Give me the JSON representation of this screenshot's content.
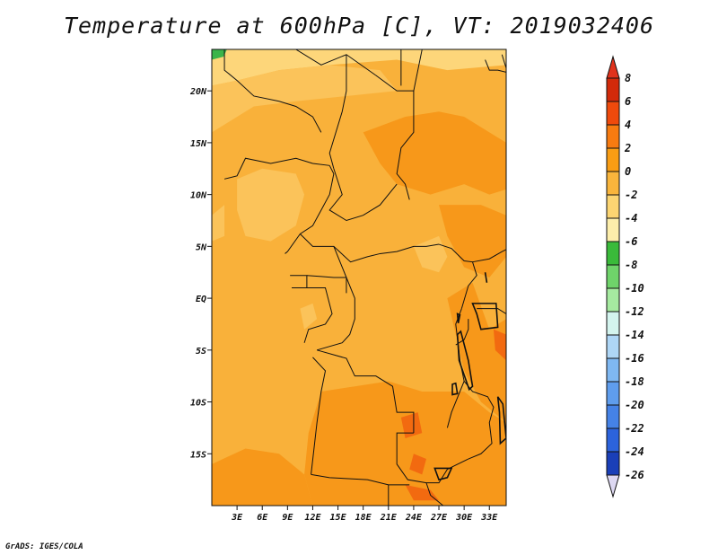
{
  "title": "Temperature at 600hPa [C], VT: 2019032406",
  "footer": "GrADS: IGES/COLA",
  "map": {
    "lon_range": [
      0,
      35
    ],
    "lat_range": [
      -20,
      24
    ],
    "lat_ticks": [
      {
        "lat": 20,
        "label": "20N"
      },
      {
        "lat": 15,
        "label": "15N"
      },
      {
        "lat": 10,
        "label": "10N"
      },
      {
        "lat": 5,
        "label": "5N"
      },
      {
        "lat": 0,
        "label": "EQ"
      },
      {
        "lat": -5,
        "label": "5S"
      },
      {
        "lat": -10,
        "label": "10S"
      },
      {
        "lat": -15,
        "label": "15S"
      }
    ],
    "lon_ticks": [
      {
        "lon": 3,
        "label": "3E"
      },
      {
        "lon": 6,
        "label": "6E"
      },
      {
        "lon": 9,
        "label": "9E"
      },
      {
        "lon": 12,
        "label": "12E"
      },
      {
        "lon": 15,
        "label": "15E"
      },
      {
        "lon": 18,
        "label": "18E"
      },
      {
        "lon": 21,
        "label": "21E"
      },
      {
        "lon": 24,
        "label": "24E"
      },
      {
        "lon": 27,
        "label": "27E"
      },
      {
        "lon": 30,
        "label": "30E"
      },
      {
        "lon": 33,
        "label": "33E"
      }
    ]
  },
  "colorbar": {
    "levels": [
      "8",
      "6",
      "4",
      "2",
      "0",
      "-2",
      "-4",
      "-6",
      "-8",
      "-10",
      "-12",
      "-14",
      "-16",
      "-18",
      "-20",
      "-22",
      "-24",
      "-26"
    ],
    "colors": [
      "#d22a0a",
      "#ef4a0c",
      "#f77b10",
      "#f99d14",
      "#f9b53c",
      "#fcd572",
      "#fdeeab",
      "#3aba3a",
      "#6fd36a",
      "#a6eaa0",
      "#d4f4ee",
      "#aed6f6",
      "#7fb8f2",
      "#5f9ded",
      "#4582e6",
      "#2c63dc",
      "#1a3fb8",
      "#0c1a78"
    ],
    "top_color": "#e0321c",
    "bottom_color": "#ddd8f2"
  },
  "field": {
    "background": "#f9b13a",
    "regions": [
      {
        "color": "#fdd67a",
        "points": [
          [
            0,
            24
          ],
          [
            35,
            24
          ],
          [
            35,
            22.5
          ],
          [
            28,
            22
          ],
          [
            22,
            23
          ],
          [
            14,
            22.5
          ],
          [
            8,
            22
          ],
          [
            3,
            21
          ],
          [
            0,
            20.5
          ]
        ]
      },
      {
        "color": "#fbc35a",
        "points": [
          [
            0,
            20.5
          ],
          [
            3,
            21
          ],
          [
            8,
            22
          ],
          [
            14,
            22.5
          ],
          [
            20,
            22
          ],
          [
            22,
            20
          ],
          [
            16,
            19.5
          ],
          [
            10,
            19
          ],
          [
            5,
            18.5
          ],
          [
            2,
            17
          ],
          [
            0,
            16
          ]
        ]
      },
      {
        "color": "#fbc35a",
        "points": [
          [
            3,
            11.5
          ],
          [
            6,
            12.5
          ],
          [
            10,
            12
          ],
          [
            11,
            10
          ],
          [
            10,
            7
          ],
          [
            7,
            5.5
          ],
          [
            4,
            6
          ],
          [
            3,
            8.5
          ]
        ]
      },
      {
        "color": "#fbc35a",
        "points": [
          [
            0,
            8
          ],
          [
            1.5,
            9
          ],
          [
            1.5,
            6
          ],
          [
            0,
            5.5
          ]
        ]
      },
      {
        "color": "#fbc35a",
        "points": [
          [
            24,
            5
          ],
          [
            27,
            6
          ],
          [
            28,
            4
          ],
          [
            27,
            2.5
          ],
          [
            25,
            3
          ]
        ]
      },
      {
        "color": "#fbc35a",
        "points": [
          [
            10.5,
            -1
          ],
          [
            12,
            -0.5
          ],
          [
            12.5,
            -2
          ],
          [
            11,
            -3
          ]
        ]
      },
      {
        "color": "#f7981a",
        "points": [
          [
            18,
            16
          ],
          [
            23,
            17.5
          ],
          [
            27,
            18
          ],
          [
            30,
            17.5
          ],
          [
            33,
            16
          ],
          [
            35,
            15
          ],
          [
            35,
            10.5
          ],
          [
            33,
            10
          ],
          [
            30,
            11
          ],
          [
            26,
            10
          ],
          [
            22,
            11
          ],
          [
            20,
            13
          ]
        ]
      },
      {
        "color": "#f7981a",
        "points": [
          [
            27,
            9
          ],
          [
            32,
            9
          ],
          [
            35,
            8
          ],
          [
            35,
            4
          ],
          [
            33,
            2
          ],
          [
            30,
            3
          ],
          [
            28,
            6
          ]
        ]
      },
      {
        "color": "#f7981a",
        "points": [
          [
            28,
            0
          ],
          [
            31,
            1.5
          ],
          [
            33,
            -3
          ],
          [
            35,
            -2
          ],
          [
            35,
            -12
          ],
          [
            32,
            -10
          ],
          [
            30,
            -7
          ]
        ]
      },
      {
        "color": "#f7981a",
        "points": [
          [
            13,
            -9
          ],
          [
            17,
            -8.5
          ],
          [
            21,
            -8
          ],
          [
            25,
            -9
          ],
          [
            30,
            -9
          ],
          [
            33,
            -11
          ],
          [
            35,
            -12
          ],
          [
            35,
            -20
          ],
          [
            12,
            -20
          ],
          [
            11,
            -17
          ],
          [
            11.5,
            -13
          ]
        ]
      },
      {
        "color": "#f7981a",
        "points": [
          [
            0,
            -16
          ],
          [
            4,
            -14.5
          ],
          [
            8,
            -15
          ],
          [
            11,
            -17
          ],
          [
            12,
            -20
          ],
          [
            0,
            -20
          ]
        ]
      },
      {
        "color": "#f26a10",
        "points": [
          [
            22.5,
            -11.5
          ],
          [
            24.5,
            -11
          ],
          [
            25,
            -13
          ],
          [
            23,
            -13.5
          ]
        ]
      },
      {
        "color": "#f26a10",
        "points": [
          [
            24,
            -15
          ],
          [
            25.5,
            -15.5
          ],
          [
            25,
            -17
          ],
          [
            23.5,
            -16.5
          ]
        ]
      },
      {
        "color": "#f26a10",
        "points": [
          [
            23,
            -18
          ],
          [
            26,
            -18.5
          ],
          [
            27,
            -19.5
          ],
          [
            24,
            -19.5
          ]
        ]
      },
      {
        "color": "#f26a10",
        "points": [
          [
            33.5,
            -3
          ],
          [
            35,
            -3.5
          ],
          [
            35,
            -6
          ],
          [
            33.7,
            -5
          ]
        ]
      },
      {
        "color": "#3bb44a",
        "points": [
          [
            0,
            24
          ],
          [
            1.8,
            24
          ],
          [
            1.4,
            23.3
          ],
          [
            0,
            23
          ]
        ]
      }
    ]
  }
}
